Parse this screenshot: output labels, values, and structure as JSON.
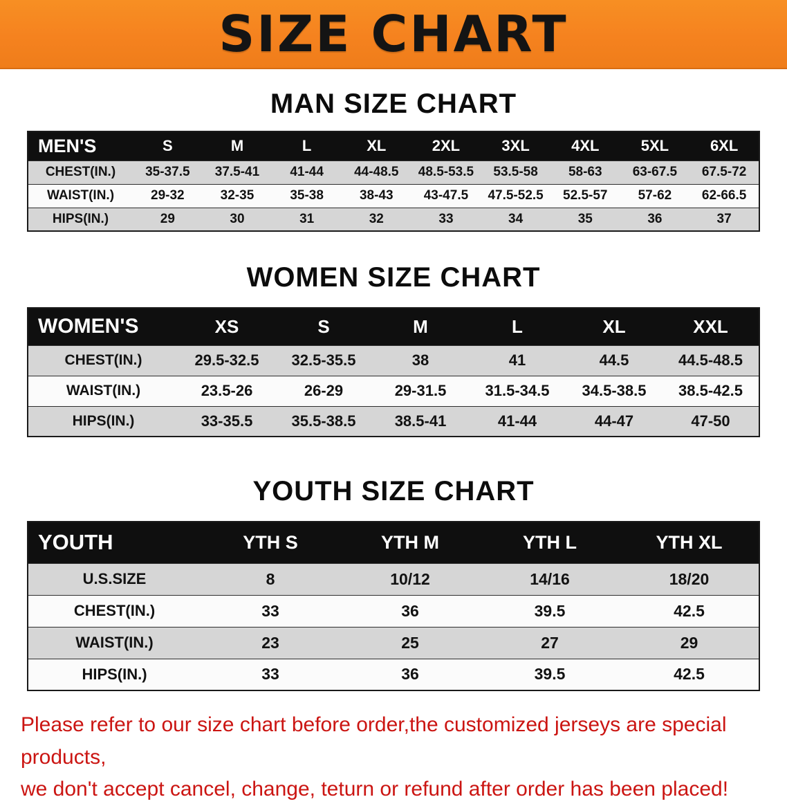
{
  "banner": {
    "title": "SIZE CHART",
    "bg_color": "#f5821f",
    "text_color": "#141414"
  },
  "sections": [
    {
      "heading": "MAN SIZE CHART",
      "table": {
        "header": [
          "MEN'S",
          "S",
          "M",
          "L",
          "XL",
          "2XL",
          "3XL",
          "4XL",
          "5XL",
          "6XL"
        ],
        "rows": [
          [
            "CHEST(IN.)",
            "35-37.5",
            "37.5-41",
            "41-44",
            "44-48.5",
            "48.5-53.5",
            "53.5-58",
            "58-63",
            "63-67.5",
            "67.5-72"
          ],
          [
            "WAIST(IN.)",
            "29-32",
            "32-35",
            "35-38",
            "38-43",
            "43-47.5",
            "47.5-52.5",
            "52.5-57",
            "57-62",
            "62-66.5"
          ],
          [
            "HIPS(IN.)",
            "29",
            "30",
            "31",
            "32",
            "33",
            "34",
            "35",
            "36",
            "37"
          ]
        ]
      }
    },
    {
      "heading": "WOMEN SIZE CHART",
      "table": {
        "header": [
          "WOMEN'S",
          "XS",
          "S",
          "M",
          "L",
          "XL",
          "XXL"
        ],
        "rows": [
          [
            "CHEST(IN.)",
            "29.5-32.5",
            "32.5-35.5",
            "38",
            "41",
            "44.5",
            "44.5-48.5"
          ],
          [
            "WAIST(IN.)",
            "23.5-26",
            "26-29",
            "29-31.5",
            "31.5-34.5",
            "34.5-38.5",
            "38.5-42.5"
          ],
          [
            "HIPS(IN.)",
            "33-35.5",
            "35.5-38.5",
            "38.5-41",
            "41-44",
            "44-47",
            "47-50"
          ]
        ]
      }
    },
    {
      "heading": "YOUTH SIZE CHART",
      "table": {
        "header": [
          "YOUTH",
          "YTH S",
          "YTH M",
          "YTH L",
          "YTH XL"
        ],
        "rows": [
          [
            "U.S.SIZE",
            "8",
            "10/12",
            "14/16",
            "18/20"
          ],
          [
            "CHEST(IN.)",
            "33",
            "36",
            "39.5",
            "42.5"
          ],
          [
            "WAIST(IN.)",
            "23",
            "25",
            "27",
            "29"
          ],
          [
            "HIPS(IN.)",
            "33",
            "36",
            "39.5",
            "42.5"
          ]
        ]
      }
    }
  ],
  "footer": {
    "line1": "Please refer to our size chart before order,the customized jerseys are special products,",
    "line2": "we don't accept cancel, change, teturn or refund after order has been placed!",
    "text_color": "#cb1512"
  }
}
